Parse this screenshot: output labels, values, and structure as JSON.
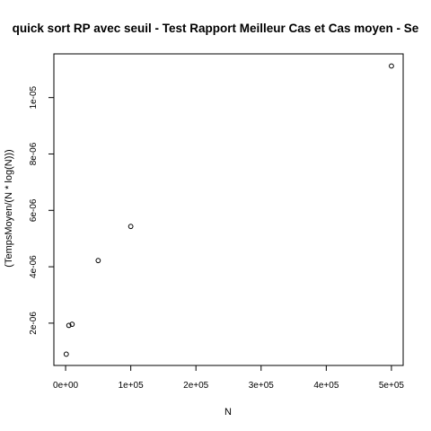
{
  "chart_data": {
    "type": "scatter",
    "title": "quick sort RP avec seuil - Test Rapport Meilleur Cas et Cas moyen - Se",
    "xlabel": "N",
    "ylabel": "(TempsMoyen/(N * log(N)))",
    "xlim": [
      -18000,
      518000
    ],
    "ylim": [
      5e-07,
      1.155e-05
    ],
    "x_ticks": [
      0,
      100000,
      200000,
      300000,
      400000,
      500000
    ],
    "x_tick_labels": [
      "0e+00",
      "1e+05",
      "2e+05",
      "3e+05",
      "4e+05",
      "5e+05"
    ],
    "y_ticks": [
      2e-06,
      4e-06,
      6e-06,
      8e-06,
      1e-05
    ],
    "y_tick_labels": [
      "2e-06",
      "4e-06",
      "6e-06",
      "8e-06",
      "1e-05"
    ],
    "grid": false,
    "point_style": "open-circle",
    "points": [
      {
        "x": 1000,
        "y": 9e-07
      },
      {
        "x": 5000,
        "y": 1.92e-06
      },
      {
        "x": 10000,
        "y": 1.96e-06
      },
      {
        "x": 50000,
        "y": 4.22e-06
      },
      {
        "x": 100000,
        "y": 5.43e-06
      },
      {
        "x": 500000,
        "y": 1.112e-05
      }
    ]
  },
  "colors": {
    "background": "#ffffff",
    "foreground": "#000000"
  }
}
